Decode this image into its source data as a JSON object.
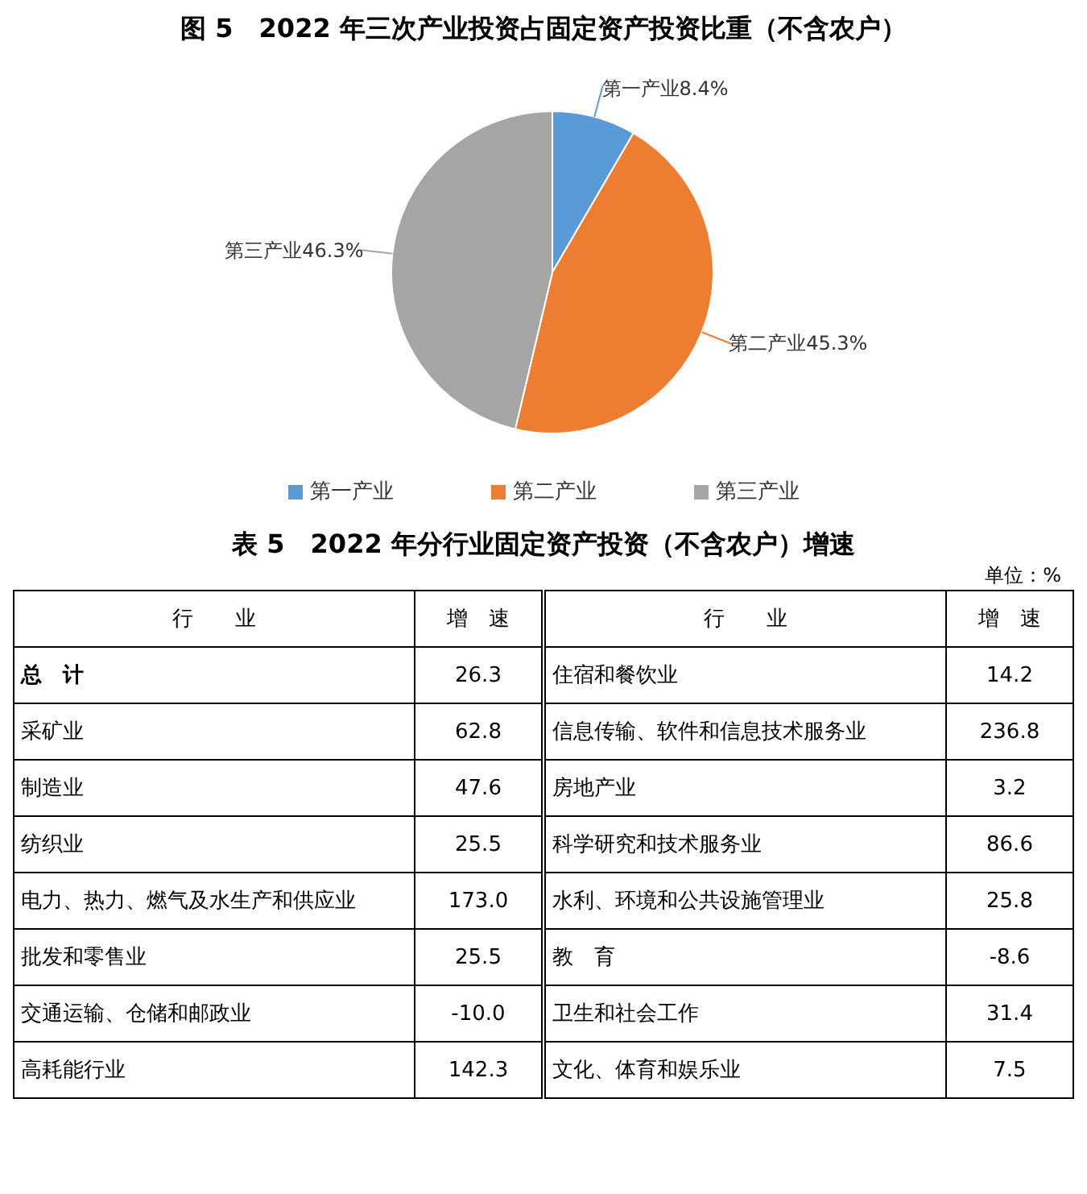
{
  "chart_data": [
    {
      "type": "pie",
      "title": "图 5　2022 年三次产业投资占固定资产投资比重（不含农户）",
      "categories": [
        "第一产业",
        "第二产业",
        "第三产业"
      ],
      "values": [
        8.4,
        45.3,
        46.3
      ],
      "value_labels": [
        "8.4%",
        "45.3%",
        "46.3%"
      ],
      "colors": [
        "#5b9bd5",
        "#ed7d31",
        "#a5a5a5"
      ],
      "legend": "bottom"
    },
    {
      "type": "other",
      "title": "表 5　2022 年分行业固定资产投资（不含农户）增速",
      "annotations": [
        "单位：%",
        "行　　业",
        "增　速",
        "总　计",
        "26.3",
        "采矿业",
        "62.8",
        "制造业",
        "47.6",
        "纺织业",
        "25.5",
        "电力、热力、燃气及水生产和供应业",
        "173.0",
        "批发和零售业",
        "25.5",
        "交通运输、仓储和邮政业",
        "-10.0",
        "高耗能行业",
        "142.3",
        "住宿和餐饮业",
        "14.2",
        "信息传输、软件和信息技术服务业",
        "236.8",
        "房地产业",
        "3.2",
        "科学研究和技术服务业",
        "86.6",
        "水利、环境和公共设施管理业",
        "25.8",
        "教　育",
        "-8.6",
        "卫生和社会工作",
        "31.4",
        "文化、体育和娱乐业",
        "7.5"
      ]
    }
  ]
}
